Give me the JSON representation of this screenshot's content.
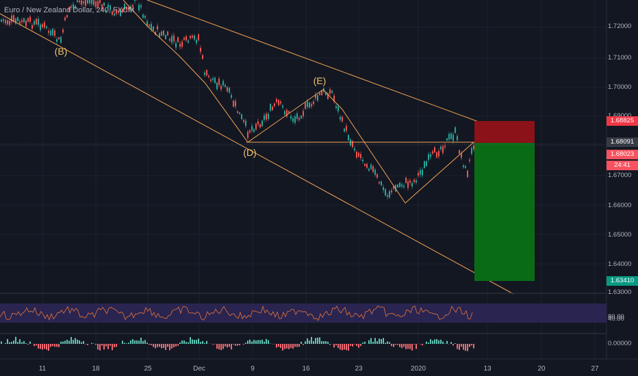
{
  "header": {
    "title": "Euro / New Zealand Dollar, 240, FXCM"
  },
  "wave_labels": [
    {
      "id": "B",
      "text": "(B)"
    },
    {
      "id": "D",
      "text": "(D)"
    },
    {
      "id": "E",
      "text": "(E)"
    }
  ],
  "price_scale": {
    "labels": [
      "1.72000",
      "1.71000",
      "1.70000",
      "1.69000",
      "1.67000",
      "1.66000",
      "1.65000",
      "1.64000",
      "1.63000"
    ],
    "badges": {
      "stop": {
        "text": "1.68825",
        "color": "#f23645"
      },
      "last": {
        "text": "1.68091",
        "color": "#363a45"
      },
      "entry": {
        "text": "1.68023",
        "color": "#f7525f"
      },
      "countdown": {
        "text": "24:41",
        "color": "#f7525f"
      },
      "target": {
        "text": "1.63410",
        "color": "#089981"
      }
    }
  },
  "time_axis": {
    "labels": [
      "11",
      "18",
      "25",
      "Dec",
      "9",
      "16",
      "23",
      "2020",
      "13",
      "20",
      "27"
    ]
  },
  "oscillator": {
    "labels": [
      "80.00",
      "40.00"
    ],
    "band_color": "#2a2450"
  },
  "histogram": {
    "labels": [
      "0.00000"
    ]
  },
  "chart_data": {
    "type": "line",
    "title": "Euro / New Zealand Dollar, 240, FXCM",
    "instrument": "EUR/NZD",
    "timeframe": "240",
    "source": "FXCM",
    "ylim": [
      1.625,
      1.73
    ],
    "x_tick_labels": [
      "11",
      "18",
      "25",
      "Dec",
      "9",
      "16",
      "23",
      "2020",
      "13",
      "20",
      "27"
    ],
    "series": [
      {
        "name": "",
        "x": [
          "11",
          "18",
          "25",
          "Dec",
          "9",
          "16",
          "23",
          "2020"
        ],
        "values": [
          1.722,
          1.728,
          1.716,
          1.712,
          1.69,
          1.695,
          1.668,
          1.68
        ]
      }
    ],
    "key_points": [
      {
        "label": "(B)",
        "x": "13",
        "y": 1.717
      },
      {
        "label": "(D)",
        "x": "8",
        "y": 1.681
      },
      {
        "label": "(E)",
        "x": "18",
        "y": 1.699
      }
    ],
    "trade": {
      "stop_loss": 1.68825,
      "entry": 1.68023,
      "take_profit": 1.6341,
      "last_price": 1.68091
    },
    "oscillator_levels": [
      80,
      40
    ]
  },
  "colors": {
    "background": "#131722",
    "up": "#26a69a",
    "down": "#ef5350",
    "trendline": "#f5a454",
    "stop_zone": "#8b1218",
    "target_zone": "#0a6b17"
  }
}
